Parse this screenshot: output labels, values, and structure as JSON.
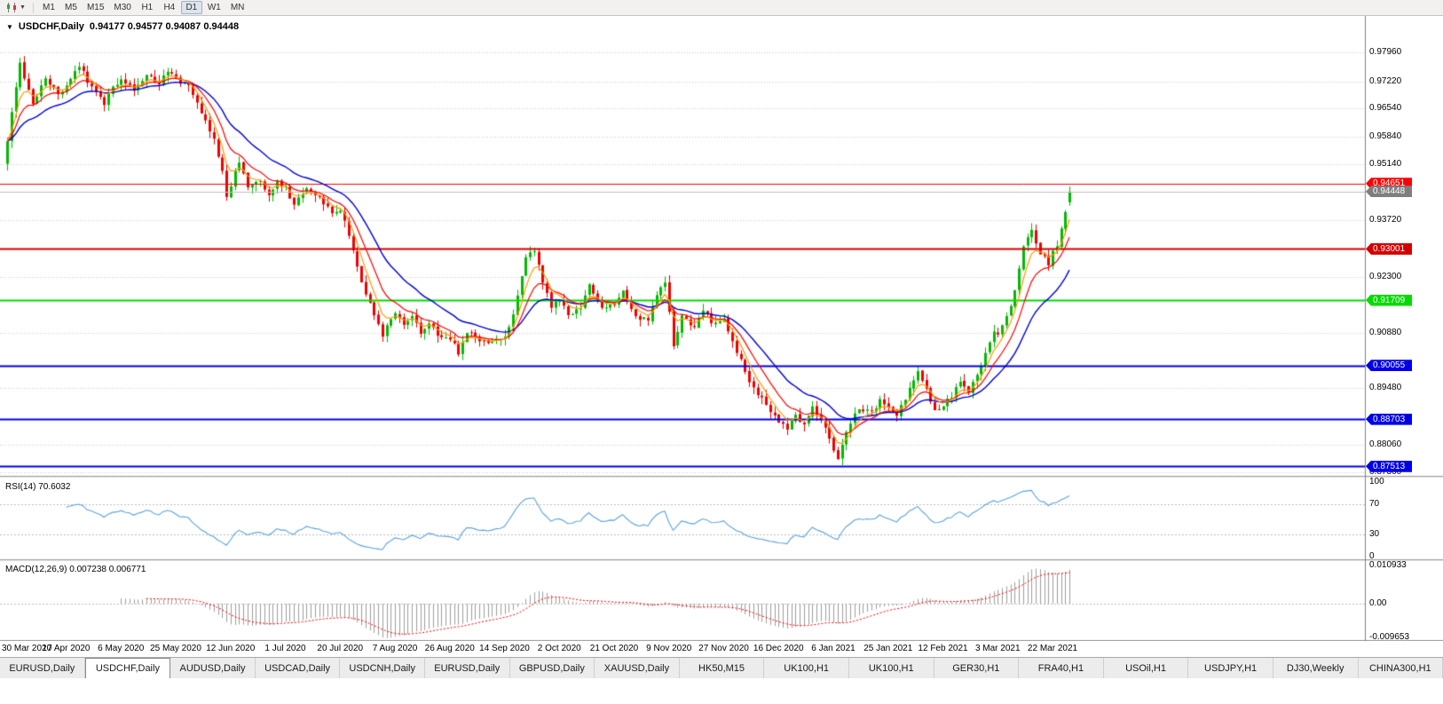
{
  "toolbar": {
    "chart_type_icon": "candlestick-chart-icon",
    "timeframes": [
      {
        "label": "M1",
        "active": false
      },
      {
        "label": "M5",
        "active": false
      },
      {
        "label": "M15",
        "active": false
      },
      {
        "label": "M30",
        "active": false
      },
      {
        "label": "H1",
        "active": false
      },
      {
        "label": "H4",
        "active": false
      },
      {
        "label": "D1",
        "active": true
      },
      {
        "label": "W1",
        "active": false
      },
      {
        "label": "MN",
        "active": false
      }
    ]
  },
  "chart": {
    "title_symbol": "USDCHF,Daily",
    "ohlc_text": "0.94177 0.94577 0.94087 0.94448",
    "price_axis_labels": [
      "0.97960",
      "0.97220",
      "0.96540",
      "0.95840",
      "0.95140",
      "0.93720",
      "0.92300",
      "0.90880",
      "0.89480",
      "0.88060",
      "0.87360"
    ],
    "hlines": [
      {
        "label": "0.94651",
        "value": 0.94651,
        "color": "#ff0000",
        "width": 1
      },
      {
        "label": "0.94448",
        "value": 0.94448,
        "color": "#c0c0c0",
        "badge": "#7f7f7f",
        "width": 1,
        "current": true
      },
      {
        "label": "0.93001",
        "value": 0.93001,
        "color": "#d40000",
        "width": 2
      },
      {
        "label": "0.91709",
        "value": 0.91709,
        "color": "#00dc00",
        "width": 2
      },
      {
        "label": "0.90055",
        "value": 0.90055,
        "color": "#0000e8",
        "width": 2
      },
      {
        "label": "0.88703",
        "value": 0.88703,
        "color": "#0000e8",
        "width": 2
      },
      {
        "label": "0.87513",
        "value": 0.87513,
        "color": "#0000e8",
        "width": 2
      }
    ],
    "date_ticks": [
      {
        "label": "30 Mar 2020",
        "index": 0
      },
      {
        "label": "17 Apr 2020",
        "index": 14
      },
      {
        "label": "6 May 2020",
        "index": 27
      },
      {
        "label": "25 May 2020",
        "index": 40
      },
      {
        "label": "12 Jun 2020",
        "index": 53
      },
      {
        "label": "1 Jul 2020",
        "index": 66
      },
      {
        "label": "20 Jul 2020",
        "index": 79
      },
      {
        "label": "7 Aug 2020",
        "index": 92
      },
      {
        "label": "26 Aug 2020",
        "index": 105
      },
      {
        "label": "14 Sep 2020",
        "index": 118
      },
      {
        "label": "2 Oct 2020",
        "index": 131
      },
      {
        "label": "21 Oct 2020",
        "index": 144
      },
      {
        "label": "9 Nov 2020",
        "index": 157
      },
      {
        "label": "27 Nov 2020",
        "index": 170
      },
      {
        "label": "16 Dec 2020",
        "index": 183
      },
      {
        "label": "6 Jan 2021",
        "index": 196
      },
      {
        "label": "25 Jan 2021",
        "index": 209
      },
      {
        "label": "12 Feb 2021",
        "index": 222
      },
      {
        "label": "3 Mar 2021",
        "index": 235
      },
      {
        "label": "22 Mar 2021",
        "index": 248
      }
    ],
    "indicators": {
      "rsi": {
        "label": "RSI(14) 70.6032",
        "value": 70.6032,
        "levels": [
          {
            "label": "100",
            "value": 100
          },
          {
            "label": "70",
            "value": 70
          },
          {
            "label": "30",
            "value": 30
          },
          {
            "label": "0",
            "value": 0
          }
        ]
      },
      "macd": {
        "label": "MACD(12,26,9) 0.007238 0.006771",
        "values": [
          0.007238,
          0.006771
        ],
        "levels": [
          {
            "label": "0.010933",
            "value": 0.010933
          },
          {
            "label": "0.00",
            "value": 0
          },
          {
            "label": "-0.009653",
            "value": -0.009653
          }
        ]
      }
    }
  },
  "tabs": [
    {
      "label": "EURUSD,Daily",
      "active": false
    },
    {
      "label": "USDCHF,Daily",
      "active": true
    },
    {
      "label": "AUDUSD,Daily",
      "active": false
    },
    {
      "label": "USDCAD,Daily",
      "active": false
    },
    {
      "label": "USDCNH,Daily",
      "active": false
    },
    {
      "label": "EURUSD,Daily",
      "active": false
    },
    {
      "label": "GBPUSD,Daily",
      "active": false
    },
    {
      "label": "XAUUSD,Daily",
      "active": false
    },
    {
      "label": "HK50,M15",
      "active": false
    },
    {
      "label": "UK100,H1",
      "active": false
    },
    {
      "label": "UK100,H1",
      "active": false
    },
    {
      "label": "GER30,H1",
      "active": false
    },
    {
      "label": "FRA40,H1",
      "active": false
    },
    {
      "label": "USOil,H1",
      "active": false
    },
    {
      "label": "USDJPY,H1",
      "active": false
    },
    {
      "label": "DJ30,Weekly",
      "active": false
    },
    {
      "label": "CHINA300,H1",
      "active": false
    }
  ],
  "colors": {
    "candle_up": "#00b900",
    "candle_down": "#ee0000",
    "ma_fast": "#ff9900",
    "ma_mid": "#ff0000",
    "ma_slow": "#0000d8",
    "rsi_line": "#59a3dc",
    "rsi_level": "#bdbdbd",
    "macd_hist": "#9e9e9e",
    "macd_signal": "#ff0000",
    "grid": "#c9c9c9"
  },
  "chart_data": {
    "type": "candlestick",
    "symbol": "USDCHF",
    "timeframe": "Daily",
    "num_candles": 253,
    "x_range": [
      "30 Mar 2020",
      "26 Mar 2021"
    ],
    "y_range": [
      0.87272,
      0.9888
    ],
    "last_candle": {
      "open": 0.94177,
      "high": 0.94577,
      "low": 0.94087,
      "close": 0.94448
    },
    "current_bid": 0.94448,
    "support_resistance_levels": [
      0.94651,
      0.93001,
      0.91709,
      0.90055,
      0.88703,
      0.87513
    ],
    "moving_averages": [
      {
        "name": "fast",
        "period": 5,
        "color": "#ff9900"
      },
      {
        "name": "mid",
        "period": 10,
        "color": "#ff0000"
      },
      {
        "name": "slow",
        "period": 21,
        "color": "#0000d8"
      }
    ],
    "rsi": {
      "period": 14,
      "current": 70.6032,
      "scale": [
        0,
        100
      ],
      "marked_levels": [
        30,
        70
      ]
    },
    "macd": {
      "fast": 12,
      "slow": 26,
      "signal": 9,
      "current_main": 0.007238,
      "current_signal": 0.006771,
      "scale": [
        -0.009653,
        0.010933
      ]
    },
    "close_anchors": [
      [
        0,
        0.9575
      ],
      [
        1,
        0.9645
      ],
      [
        3,
        0.977
      ],
      [
        5,
        0.97
      ],
      [
        6,
        0.9665
      ],
      [
        9,
        0.973
      ],
      [
        12,
        0.969
      ],
      [
        14,
        0.9715
      ],
      [
        17,
        0.9765
      ],
      [
        20,
        0.9705
      ],
      [
        23,
        0.9668
      ],
      [
        25,
        0.9715
      ],
      [
        27,
        0.9722
      ],
      [
        30,
        0.97
      ],
      [
        33,
        0.9745
      ],
      [
        36,
        0.9718
      ],
      [
        38,
        0.9752
      ],
      [
        40,
        0.973
      ],
      [
        43,
        0.9708
      ],
      [
        46,
        0.9642
      ],
      [
        49,
        0.9572
      ],
      [
        51,
        0.9498
      ],
      [
        52,
        0.9428
      ],
      [
        54,
        0.9498
      ],
      [
        55,
        0.9512
      ],
      [
        57,
        0.9462
      ],
      [
        60,
        0.9478
      ],
      [
        62,
        0.9432
      ],
      [
        64,
        0.9466
      ],
      [
        66,
        0.9452
      ],
      [
        68,
        0.9412
      ],
      [
        71,
        0.945
      ],
      [
        74,
        0.9426
      ],
      [
        77,
        0.939
      ],
      [
        79,
        0.94
      ],
      [
        81,
        0.9332
      ],
      [
        83,
        0.925
      ],
      [
        85,
        0.9188
      ],
      [
        87,
        0.9138
      ],
      [
        89,
        0.9085
      ],
      [
        91,
        0.9122
      ],
      [
        92,
        0.9135
      ],
      [
        94,
        0.9106
      ],
      [
        96,
        0.9126
      ],
      [
        98,
        0.909
      ],
      [
        100,
        0.9112
      ],
      [
        102,
        0.9086
      ],
      [
        105,
        0.9073
      ],
      [
        107,
        0.904
      ],
      [
        109,
        0.9092
      ],
      [
        112,
        0.9073
      ],
      [
        115,
        0.906
      ],
      [
        118,
        0.9083
      ],
      [
        120,
        0.9132
      ],
      [
        123,
        0.9283
      ],
      [
        125,
        0.9292
      ],
      [
        127,
        0.922
      ],
      [
        129,
        0.9156
      ],
      [
        131,
        0.9176
      ],
      [
        133,
        0.913
      ],
      [
        136,
        0.9153
      ],
      [
        138,
        0.9206
      ],
      [
        141,
        0.9146
      ],
      [
        144,
        0.9163
      ],
      [
        146,
        0.9189
      ],
      [
        149,
        0.9126
      ],
      [
        152,
        0.9119
      ],
      [
        154,
        0.9181
      ],
      [
        156,
        0.922
      ],
      [
        158,
        0.9053
      ],
      [
        160,
        0.9126
      ],
      [
        163,
        0.9106
      ],
      [
        165,
        0.9143
      ],
      [
        167,
        0.9116
      ],
      [
        170,
        0.9121
      ],
      [
        172,
        0.9063
      ],
      [
        174,
        0.9021
      ],
      [
        176,
        0.8963
      ],
      [
        178,
        0.8936
      ],
      [
        180,
        0.8906
      ],
      [
        183,
        0.8863
      ],
      [
        185,
        0.8846
      ],
      [
        187,
        0.8881
      ],
      [
        189,
        0.8856
      ],
      [
        191,
        0.8896
      ],
      [
        193,
        0.8866
      ],
      [
        195,
        0.8822
      ],
      [
        197,
        0.8769
      ],
      [
        199,
        0.8843
      ],
      [
        201,
        0.8886
      ],
      [
        203,
        0.8896
      ],
      [
        205,
        0.8886
      ],
      [
        207,
        0.8921
      ],
      [
        209,
        0.8893
      ],
      [
        211,
        0.8881
      ],
      [
        213,
        0.8921
      ],
      [
        216,
        0.8996
      ],
      [
        218,
        0.8946
      ],
      [
        220,
        0.8891
      ],
      [
        222,
        0.8906
      ],
      [
        224,
        0.8926
      ],
      [
        226,
        0.8966
      ],
      [
        228,
        0.8941
      ],
      [
        230,
        0.8976
      ],
      [
        232,
        0.9036
      ],
      [
        234,
        0.9086
      ],
      [
        235,
        0.9081
      ],
      [
        237,
        0.9126
      ],
      [
        239,
        0.9196
      ],
      [
        241,
        0.9301
      ],
      [
        243,
        0.9346
      ],
      [
        245,
        0.9291
      ],
      [
        247,
        0.9263
      ],
      [
        248,
        0.9291
      ],
      [
        249,
        0.9313
      ],
      [
        250,
        0.9356
      ],
      [
        251,
        0.9399
      ],
      [
        252,
        0.9445
      ]
    ]
  }
}
